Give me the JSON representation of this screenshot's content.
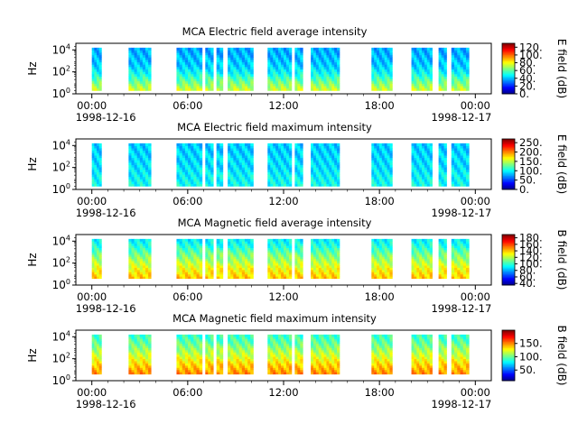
{
  "chart_data": [
    {
      "type": "heatmap",
      "title": "MCA  Electric field average intensity",
      "ylabel": "Hz",
      "y_scale": "log",
      "ylim_log10": [
        0,
        4.6
      ],
      "y_ticks": [
        {
          "base": "10",
          "exp": "0"
        },
        {
          "base": "10",
          "exp": "2"
        },
        {
          "base": "10",
          "exp": "4"
        }
      ],
      "x_range_hours": [
        -1,
        25
      ],
      "x_ticks": [
        "00:00",
        "06:00",
        "12:00",
        "18:00",
        "00:00"
      ],
      "x_dates": [
        "1998-12-16",
        "1998-12-17"
      ],
      "colorbar": {
        "label": "E field (dB)",
        "min": 0,
        "max": 130,
        "ticks": [
          "0.",
          "20.",
          "40.",
          "60.",
          "80.",
          "100.",
          "120."
        ]
      },
      "segments_hours": [
        [
          0,
          0.6
        ],
        [
          2.3,
          3.7
        ],
        [
          5.3,
          6.9
        ],
        [
          7.1,
          7.6
        ],
        [
          7.8,
          8.2
        ],
        [
          8.5,
          10.1
        ],
        [
          11.0,
          12.5
        ],
        [
          12.7,
          13.2
        ],
        [
          13.7,
          15.5
        ],
        [
          17.5,
          18.8
        ],
        [
          20.0,
          21.3
        ],
        [
          21.7,
          22.2
        ],
        [
          22.5,
          23.6
        ]
      ],
      "freq_range_log10": [
        0.3,
        4.2
      ],
      "intensity_profile": [
        75,
        62,
        50,
        42,
        40,
        38
      ]
    },
    {
      "type": "heatmap",
      "title": "MCA  Electric field maximum intensity",
      "ylabel": "Hz",
      "y_scale": "log",
      "ylim_log10": [
        0,
        4.6
      ],
      "y_ticks": [
        {
          "base": "10",
          "exp": "0"
        },
        {
          "base": "10",
          "exp": "2"
        },
        {
          "base": "10",
          "exp": "4"
        }
      ],
      "x_range_hours": [
        -1,
        25
      ],
      "x_ticks": [
        "00:00",
        "06:00",
        "12:00",
        "18:00",
        "00:00"
      ],
      "x_dates": [
        "1998-12-16",
        "1998-12-17"
      ],
      "colorbar": {
        "label": "E field (dB)",
        "min": 0,
        "max": 270,
        "ticks": [
          "0.",
          "50.",
          "100.",
          "150.",
          "200.",
          "250."
        ]
      },
      "segments_hours": [
        [
          0,
          0.6
        ],
        [
          2.3,
          3.7
        ],
        [
          5.3,
          6.9
        ],
        [
          7.1,
          7.6
        ],
        [
          7.8,
          8.2
        ],
        [
          8.5,
          10.1
        ],
        [
          11.0,
          12.5
        ],
        [
          12.7,
          13.2
        ],
        [
          13.7,
          15.5
        ],
        [
          17.5,
          18.8
        ],
        [
          20.0,
          21.3
        ],
        [
          21.7,
          22.2
        ],
        [
          22.5,
          23.6
        ]
      ],
      "freq_range_log10": [
        0.3,
        4.2
      ],
      "intensity_profile": [
        105,
        100,
        95,
        92,
        90,
        88
      ]
    },
    {
      "type": "heatmap",
      "title": "MCA  Magnetic field average intensity",
      "ylabel": "Hz",
      "y_scale": "log",
      "ylim_log10": [
        0,
        4.6
      ],
      "y_ticks": [
        {
          "base": "10",
          "exp": "0"
        },
        {
          "base": "10",
          "exp": "2"
        },
        {
          "base": "10",
          "exp": "4"
        }
      ],
      "x_range_hours": [
        -1,
        25
      ],
      "x_ticks": [
        "00:00",
        "06:00",
        "12:00",
        "18:00",
        "00:00"
      ],
      "x_dates": [
        "1998-12-16",
        "1998-12-17"
      ],
      "colorbar": {
        "label": "B field (dB)",
        "min": 35,
        "max": 190,
        "ticks": [
          "40.",
          "60.",
          "80.",
          "100.",
          "120.",
          "140.",
          "160.",
          "180."
        ]
      },
      "segments_hours": [
        [
          0,
          0.6
        ],
        [
          2.3,
          3.7
        ],
        [
          5.3,
          6.9
        ],
        [
          7.1,
          7.6
        ],
        [
          7.8,
          8.2
        ],
        [
          8.5,
          10.1
        ],
        [
          11.0,
          12.5
        ],
        [
          12.7,
          13.2
        ],
        [
          13.7,
          15.5
        ],
        [
          17.5,
          18.8
        ],
        [
          20.0,
          21.3
        ],
        [
          21.7,
          22.2
        ],
        [
          22.5,
          23.6
        ]
      ],
      "freq_range_log10": [
        0.6,
        4.2
      ],
      "intensity_profile": [
        140,
        132,
        122,
        112,
        100,
        92
      ]
    },
    {
      "type": "heatmap",
      "title": "MCA  Magnetic field maximum intensity",
      "ylabel": "Hz",
      "y_scale": "log",
      "ylim_log10": [
        0,
        4.6
      ],
      "y_ticks": [
        {
          "base": "10",
          "exp": "0"
        },
        {
          "base": "10",
          "exp": "2"
        },
        {
          "base": "10",
          "exp": "4"
        }
      ],
      "x_range_hours": [
        -1,
        25
      ],
      "x_ticks": [
        "00:00",
        "06:00",
        "12:00",
        "18:00",
        "00:00"
      ],
      "x_dates": [
        "1998-12-16",
        "1998-12-17"
      ],
      "colorbar": {
        "label": "B field (dB)",
        "min": 10,
        "max": 200,
        "ticks": [
          "50.",
          "100.",
          "150."
        ]
      },
      "segments_hours": [
        [
          0,
          0.6
        ],
        [
          2.3,
          3.7
        ],
        [
          5.3,
          6.9
        ],
        [
          7.1,
          7.6
        ],
        [
          7.8,
          8.2
        ],
        [
          8.5,
          10.1
        ],
        [
          11.0,
          12.5
        ],
        [
          12.7,
          13.2
        ],
        [
          13.7,
          15.5
        ],
        [
          17.5,
          18.8
        ],
        [
          20.0,
          21.3
        ],
        [
          21.7,
          22.2
        ],
        [
          22.5,
          23.6
        ]
      ],
      "freq_range_log10": [
        0.6,
        4.2
      ],
      "intensity_profile": [
        150,
        138,
        125,
        112,
        100,
        92
      ]
    }
  ]
}
